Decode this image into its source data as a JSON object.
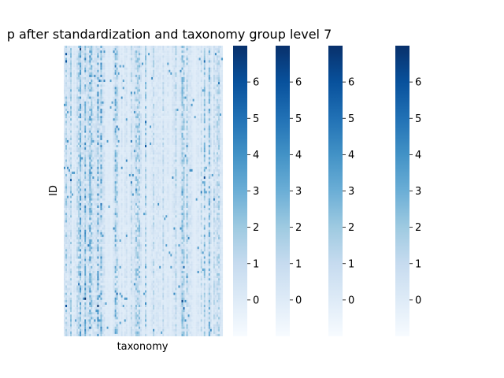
{
  "chart_data": {
    "type": "heatmap",
    "title": "p after standardization and taxonomy group level 7",
    "xlabel": "taxonomy",
    "ylabel": "ID",
    "xticklabels": [],
    "yticklabels": [],
    "colormap": "Blues",
    "colorbar_count": 4,
    "colorbar_range": [
      -1,
      7
    ],
    "colorbar_ticks": [
      0,
      1,
      2,
      3,
      4,
      5,
      6
    ],
    "colorbar_ticklabels": [
      "0",
      "1",
      "2",
      "3",
      "4",
      "5",
      "6"
    ],
    "colors": {
      "low": "#f7fbff",
      "mid": "#6baed6",
      "high": "#08306b"
    }
  }
}
